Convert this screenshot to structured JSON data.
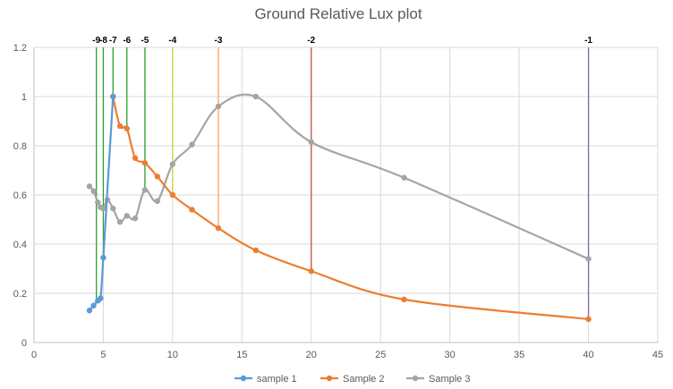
{
  "chart_data": {
    "type": "scatter",
    "title": "Ground Relative Lux plot",
    "xlabel": "",
    "ylabel": "",
    "xlim": [
      0,
      45
    ],
    "ylim": [
      0,
      1.2
    ],
    "xticks": [
      0,
      5,
      10,
      15,
      20,
      25,
      30,
      35,
      40,
      45
    ],
    "yticks": [
      0,
      0.2,
      0.4,
      0.6,
      0.8,
      1,
      1.2
    ],
    "xtick_labels": [
      "0",
      "5",
      "10",
      "15",
      "20",
      "25",
      "30",
      "35",
      "40",
      "45"
    ],
    "ytick_labels": [
      "0",
      "0.2",
      "0.4",
      "0.6",
      "0.8",
      "1",
      "1.2"
    ],
    "grid": true,
    "legend_position": "bottom",
    "series": [
      {
        "name": "sample 1",
        "color": "#5b9bd5",
        "x": [
          4.0,
          4.3,
          4.6,
          4.8,
          5.0,
          5.7
        ],
        "y": [
          0.13,
          0.15,
          0.17,
          0.18,
          0.345,
          1.0
        ]
      },
      {
        "name": "Sample 2",
        "color": "#ed7d31",
        "x": [
          5.7,
          6.2,
          6.7,
          7.3,
          8.0,
          8.9,
          10.0,
          11.4,
          13.3,
          16.0,
          20.0,
          26.7,
          40.0
        ],
        "y": [
          1.0,
          0.88,
          0.87,
          0.75,
          0.73,
          0.675,
          0.6,
          0.54,
          0.465,
          0.375,
          0.29,
          0.175,
          0.095
        ]
      },
      {
        "name": "Sample 3",
        "color": "#a5a5a5",
        "x": [
          4.0,
          4.3,
          4.6,
          4.8,
          5.0,
          5.3,
          5.7,
          6.2,
          6.7,
          7.3,
          8.0,
          8.9,
          10.0,
          11.4,
          13.3,
          16.0,
          20.0,
          26.7,
          40.0
        ],
        "y": [
          0.635,
          0.615,
          0.57,
          0.55,
          0.545,
          0.58,
          0.545,
          0.49,
          0.515,
          0.505,
          0.62,
          0.575,
          0.725,
          0.805,
          0.96,
          1.0,
          0.815,
          0.67,
          0.34
        ]
      }
    ],
    "vertical_markers": [
      {
        "label": "-9",
        "x": 4.5,
        "y_end": 0.17,
        "color": "#2ca02c"
      },
      {
        "label": "-8",
        "x": 5.0,
        "y_end": 0.345,
        "color": "#2ca02c"
      },
      {
        "label": "-7",
        "x": 5.7,
        "y_end": 1.0,
        "color": "#2ca02c"
      },
      {
        "label": "-6",
        "x": 6.7,
        "y_end": 0.87,
        "color": "#2ca02c"
      },
      {
        "label": "-5",
        "x": 8.0,
        "y_end": 0.62,
        "color": "#2ca02c"
      },
      {
        "label": "-4",
        "x": 10.0,
        "y_end": 0.6,
        "color": "#c9cf3a"
      },
      {
        "label": "-3",
        "x": 13.3,
        "y_end": 0.465,
        "color": "#f5a55a"
      },
      {
        "label": "-2",
        "x": 20.0,
        "y_end": 0.29,
        "color": "#c0504d"
      },
      {
        "label": "-1",
        "x": 40.0,
        "y_end": 0.095,
        "color": "#8064a2"
      }
    ],
    "colors": {
      "grid": "#d9d9d9",
      "axis": "#bfbfbf",
      "text": "#595959"
    }
  }
}
